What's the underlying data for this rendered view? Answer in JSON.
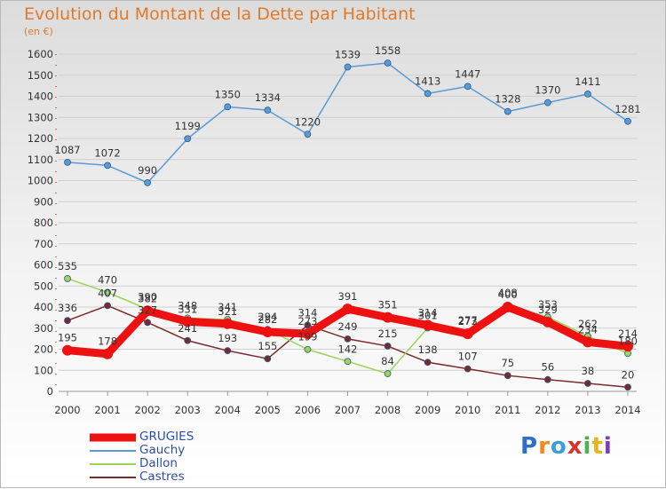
{
  "header": {
    "title": "Evolution du Montant de la Dette par Habitant",
    "unit": "(en €)"
  },
  "logo": {
    "text": "Proxiti",
    "colors": [
      "#2e6fc7",
      "#f08a1c",
      "#3aa0d8",
      "#d9322b",
      "#4fb24f",
      "#e8b416",
      "#7a3fb0"
    ]
  },
  "chart_data": {
    "type": "line",
    "title": "Evolution du Montant de la Dette par Habitant",
    "ylabel": "(en €)",
    "xlabel": "",
    "x": [
      "2000",
      "2001",
      "2002",
      "2003",
      "2004",
      "2005",
      "2006",
      "2007",
      "2008",
      "2009",
      "2010",
      "2011",
      "2012",
      "2013",
      "2014"
    ],
    "ylim": [
      0,
      1600
    ],
    "yticks": [
      0,
      100,
      200,
      300,
      400,
      500,
      600,
      700,
      800,
      900,
      1000,
      1100,
      1200,
      1300,
      1400,
      1500,
      1600
    ],
    "grid": true,
    "legend_position": "bottom-left",
    "series": [
      {
        "name": "GRUGIES",
        "color": "#ee1111",
        "emphasis": true,
        "values": [
          195,
          178,
          382,
          331,
          321,
          282,
          273,
          391,
          351,
          314,
          273,
          400,
          329,
          234,
          214
        ]
      },
      {
        "name": "Gauchy",
        "color": "#5b9bd5",
        "values": [
          1087,
          1072,
          990,
          1199,
          1350,
          1334,
          1220,
          1539,
          1558,
          1413,
          1447,
          1328,
          1370,
          1411,
          1281
        ]
      },
      {
        "name": "Dallon",
        "color": "#9cd45a",
        "values": [
          535,
          470,
          390,
          348,
          341,
          294,
          199,
          142,
          84,
          301,
          277,
          408,
          353,
          262,
          180
        ]
      },
      {
        "name": "Castres",
        "color": "#7a2a2a",
        "values": [
          336,
          407,
          327,
          241,
          193,
          155,
          314,
          249,
          215,
          138,
          107,
          75,
          56,
          38,
          20
        ]
      }
    ]
  }
}
